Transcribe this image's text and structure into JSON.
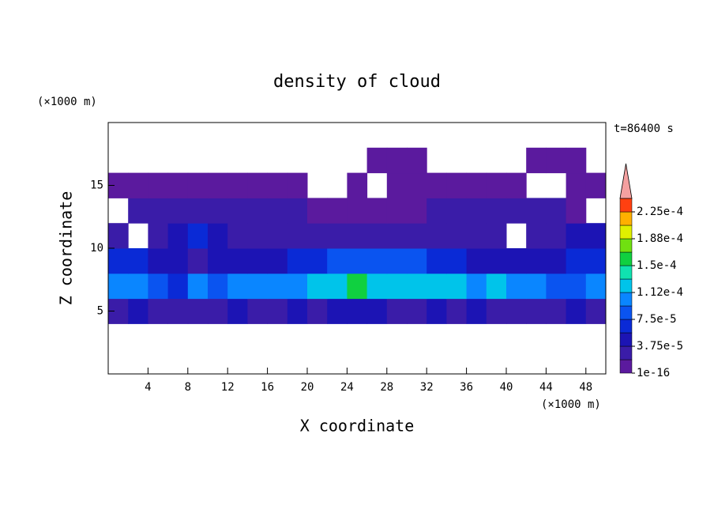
{
  "chart_data": {
    "type": "contour",
    "title": "density of cloud",
    "xlabel": "X coordinate",
    "ylabel": "Z coordinate",
    "x_unit": "(×1000 m)",
    "y_unit": "(×1000 m)",
    "time_label": "t=86400 s",
    "xlim": [
      0,
      50
    ],
    "ylim": [
      0,
      20
    ],
    "xticks": [
      4,
      8,
      12,
      16,
      20,
      24,
      28,
      32,
      36,
      40,
      44,
      48
    ],
    "yticks": [
      5,
      10,
      15
    ],
    "x": [
      1,
      3,
      5,
      7,
      9,
      11,
      13,
      15,
      17,
      19,
      21,
      23,
      25,
      27,
      29,
      31,
      33,
      35,
      37,
      39,
      41,
      43,
      45,
      47,
      49
    ],
    "y": [
      1,
      3,
      5,
      7,
      9,
      11,
      13,
      15,
      17,
      19
    ],
    "z": [
      [
        null,
        null,
        null,
        null,
        null,
        null,
        null,
        null,
        null,
        null,
        null,
        null,
        null,
        null,
        null,
        null,
        null,
        null,
        null,
        null,
        null,
        null,
        null,
        null,
        null
      ],
      [
        null,
        null,
        null,
        null,
        null,
        null,
        null,
        null,
        null,
        null,
        null,
        null,
        null,
        null,
        null,
        null,
        null,
        null,
        null,
        null,
        null,
        null,
        null,
        null,
        null
      ],
      [
        3e-05,
        4e-05,
        3e-05,
        2e-05,
        3e-05,
        3e-05,
        4e-05,
        3e-05,
        3e-05,
        4e-05,
        3e-05,
        4e-05,
        4e-05,
        4e-05,
        3e-05,
        3e-05,
        4e-05,
        3e-05,
        4e-05,
        3e-05,
        3e-05,
        3e-05,
        2e-05,
        4e-05,
        3e-05
      ],
      [
        0.00011,
        0.0001,
        9e-05,
        6e-05,
        0.0001,
        9e-05,
        0.00011,
        0.0001,
        0.0001,
        0.00011,
        0.00012,
        0.00013,
        0.00016,
        0.00013,
        0.00013,
        0.00013,
        0.00013,
        0.00012,
        0.00011,
        0.00012,
        0.00011,
        0.0001,
        8e-05,
        9e-05,
        0.0001
      ],
      [
        7e-05,
        6e-05,
        5e-05,
        4e-05,
        3e-05,
        4e-05,
        5e-05,
        4e-05,
        5e-05,
        6e-05,
        7e-05,
        9e-05,
        9e-05,
        9e-05,
        8e-05,
        8e-05,
        7e-05,
        6e-05,
        5e-05,
        5e-05,
        5e-05,
        4e-05,
        5e-05,
        6e-05,
        6e-05
      ],
      [
        3e-05,
        null,
        2e-05,
        5e-05,
        6e-05,
        4e-05,
        3e-05,
        3e-05,
        2e-05,
        3e-05,
        3e-05,
        3e-05,
        3e-05,
        3e-05,
        3e-05,
        2e-05,
        3e-05,
        3e-05,
        3e-05,
        3e-05,
        null,
        2e-05,
        3e-05,
        4e-05,
        4e-05
      ],
      [
        null,
        2e-05,
        2.5e-05,
        3e-05,
        2e-05,
        2e-05,
        2e-05,
        2e-05,
        2e-05,
        2e-05,
        1e-05,
        1e-05,
        1e-05,
        1e-05,
        1e-05,
        1e-05,
        2e-05,
        2e-05,
        2e-05,
        2e-05,
        2e-05,
        2e-05,
        2e-05,
        1e-05,
        null
      ],
      [
        1e-05,
        1e-05,
        1e-05,
        1e-05,
        1e-05,
        1e-05,
        1e-05,
        1e-05,
        1e-05,
        1e-05,
        null,
        null,
        1e-05,
        null,
        1e-05,
        1e-05,
        1e-05,
        1e-05,
        1e-05,
        1e-05,
        1e-05,
        null,
        null,
        1e-05,
        1e-05
      ],
      [
        null,
        null,
        null,
        null,
        null,
        null,
        null,
        null,
        null,
        null,
        null,
        null,
        null,
        1e-05,
        1e-05,
        1e-05,
        null,
        null,
        null,
        null,
        null,
        1e-05,
        1e-05,
        1e-05,
        null
      ],
      [
        null,
        null,
        null,
        null,
        null,
        null,
        null,
        null,
        null,
        null,
        null,
        null,
        null,
        null,
        null,
        null,
        null,
        null,
        null,
        null,
        null,
        null,
        null,
        null,
        null
      ]
    ],
    "colorbar": {
      "levels": [
        1e-16,
        1.875e-05,
        3.75e-05,
        5.625e-05,
        7.5e-05,
        9.375e-05,
        0.0001125,
        0.00013125,
        0.00015,
        0.00016875,
        0.0001875,
        0.00020625,
        0.000225,
        0.00024375
      ],
      "colors": [
        "#5b1a9e",
        "#3a1ca8",
        "#1c14b4",
        "#0a2ad6",
        "#0a54f0",
        "#0a86ff",
        "#00c4ea",
        "#10e2b0",
        "#10d040",
        "#70e010",
        "#e0f000",
        "#ffb000",
        "#ff4010"
      ],
      "extend_color": "#f4a0a0",
      "ticks": [
        {
          "value": 1e-16,
          "label": "1e-16"
        },
        {
          "value": 3.75e-05,
          "label": "3.75e-5"
        },
        {
          "value": 7.5e-05,
          "label": "7.5e-5"
        },
        {
          "value": 0.0001125,
          "label": "1.12e-4"
        },
        {
          "value": 0.00015,
          "label": "1.5e-4"
        },
        {
          "value": 0.0001875,
          "label": "1.88e-4"
        },
        {
          "value": 0.000225,
          "label": "2.25e-4"
        }
      ]
    }
  }
}
